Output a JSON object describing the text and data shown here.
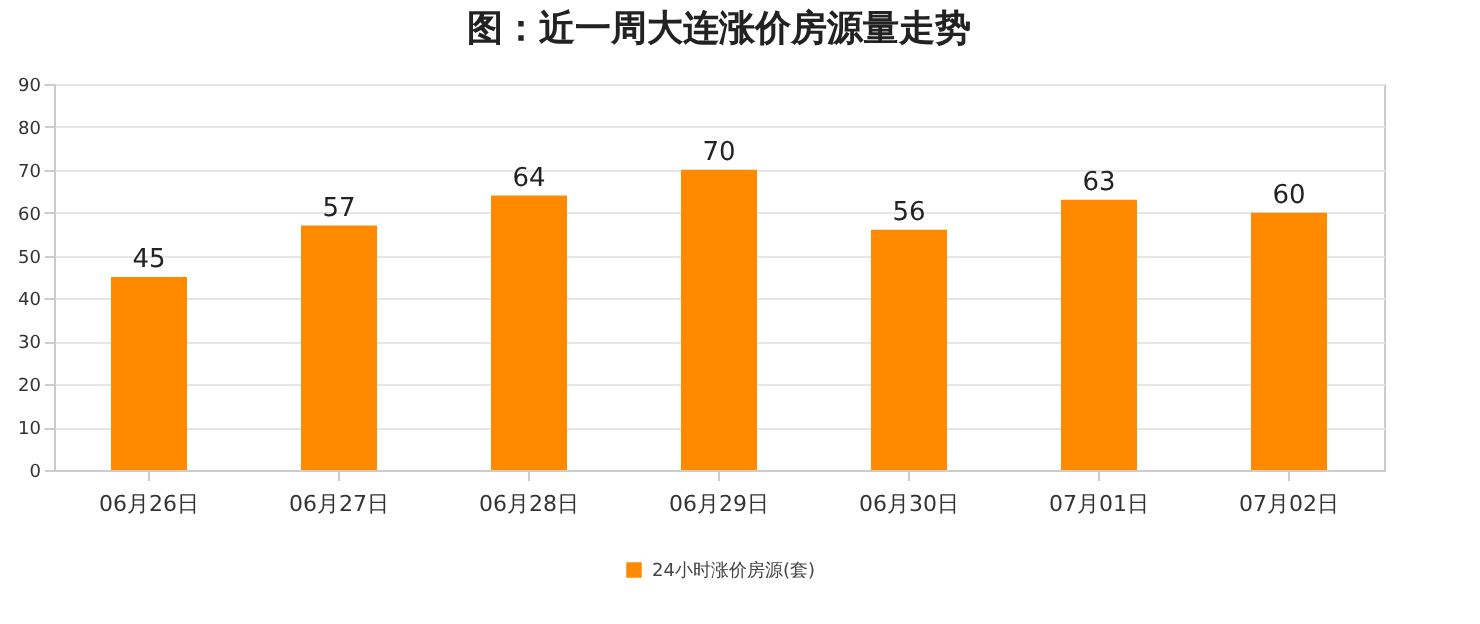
{
  "chart_data": {
    "type": "bar",
    "title": "图：近一周大连涨价房源量走势",
    "categories": [
      "06月26日",
      "06月27日",
      "06月28日",
      "06月29日",
      "06月30日",
      "07月01日",
      "07月02日"
    ],
    "series": [
      {
        "name": "24小时涨价房源(套)",
        "color": "#ff8a00",
        "values": [
          45,
          57,
          64,
          70,
          56,
          63,
          60
        ]
      }
    ],
    "ylim": [
      0,
      90
    ],
    "yticks": [
      0,
      10,
      20,
      30,
      40,
      50,
      60,
      70,
      80,
      90
    ],
    "grid": "y",
    "legend": "bottom",
    "data_labels": true
  }
}
